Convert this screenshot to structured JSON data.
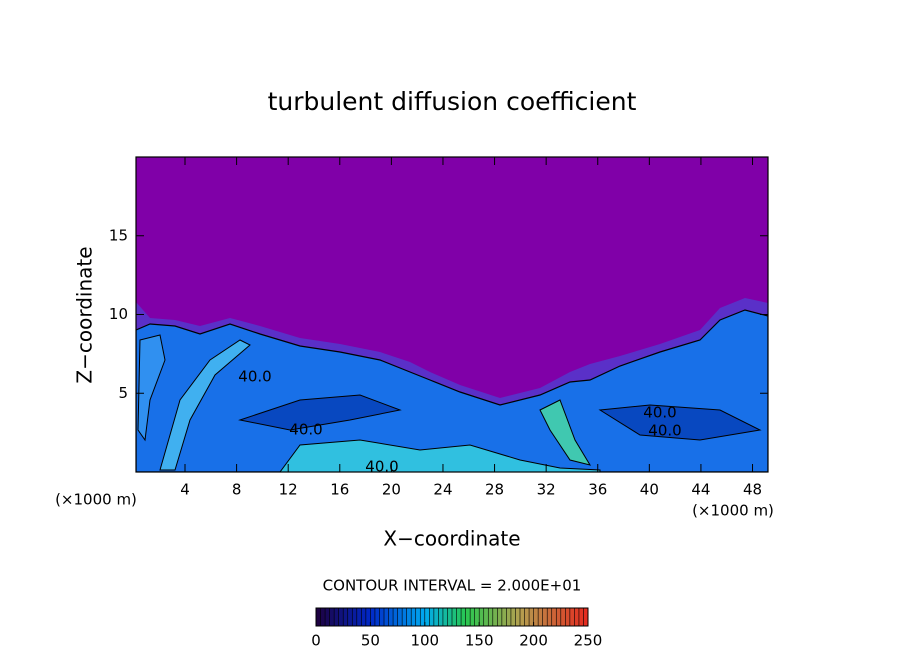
{
  "chart_data": {
    "type": "contour",
    "title": "turbulent diffusion coefficient",
    "x_label": "X−coordinate",
    "y_label": "Z−coordinate",
    "x_unit_label": "(×1000 m)",
    "xlim": [
      0.2,
      49.2
    ],
    "xticks": [
      4,
      8,
      12,
      16,
      20,
      24,
      28,
      32,
      36,
      40,
      44,
      48
    ],
    "ylim": [
      0,
      20
    ],
    "yticks": [
      5,
      10,
      15
    ],
    "contour_labels": [
      "40.0",
      "40.0",
      "40.0",
      "40.0",
      "40.0"
    ],
    "colorbar": {
      "title": "CONTOUR INTERVAL = 2.000E+01",
      "lim": [
        0,
        250
      ],
      "ticks": [
        0,
        50,
        100,
        150,
        200,
        250
      ]
    }
  }
}
